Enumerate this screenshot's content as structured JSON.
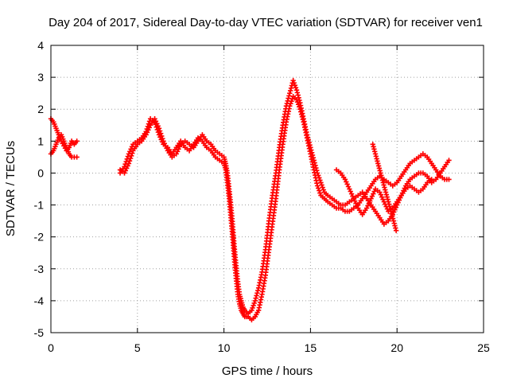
{
  "chart_data": {
    "type": "scatter",
    "title": "Day 204 of 2017, Sidereal Day-to-day VTEC variation (SDTVAR) for receiver ven1",
    "xlabel": "GPS time / hours",
    "ylabel": "SDTVAR / TECUs",
    "xlim": [
      0,
      25
    ],
    "ylim": [
      -5,
      4
    ],
    "xticks": [
      "0",
      "5",
      "10",
      "15",
      "20",
      "25"
    ],
    "yticks": [
      "-5",
      "-4",
      "-3",
      "-2",
      "-1",
      "0",
      "1",
      "2",
      "3",
      "4"
    ],
    "grid": true,
    "marker": "plus",
    "color": "#ff0000",
    "series": [
      {
        "name": "",
        "segments": [
          {
            "x": [
              0.0,
              0.15,
              0.3,
              0.45,
              0.6,
              0.75,
              0.9,
              1.05,
              1.2,
              1.35,
              1.5
            ],
            "y": [
              1.7,
              1.6,
              1.4,
              1.2,
              1.0,
              0.85,
              0.7,
              0.8,
              1.0,
              0.9,
              1.0
            ]
          },
          {
            "x": [
              0.0,
              0.15,
              0.3,
              0.45,
              0.6,
              0.75,
              0.9,
              1.05,
              1.2,
              1.35,
              1.5
            ],
            "y": [
              0.6,
              0.7,
              0.9,
              1.1,
              1.2,
              1.0,
              0.8,
              0.6,
              0.5,
              0.5,
              0.5
            ]
          },
          {
            "x": [
              4.0,
              4.25,
              4.5,
              4.75,
              5.0,
              5.25,
              5.5,
              5.75,
              6.0,
              6.25,
              6.5,
              6.75,
              7.0,
              7.25,
              7.5,
              7.75,
              8.0,
              8.25,
              8.5,
              8.75,
              9.0,
              9.25,
              9.5,
              9.75,
              10.0,
              10.1,
              10.2,
              10.3,
              10.4,
              10.5,
              10.6,
              10.7,
              10.8,
              10.9,
              11.0,
              11.1,
              11.2,
              11.4,
              11.6,
              11.8,
              12.0,
              12.2,
              12.4,
              12.6,
              12.8,
              13.0,
              13.2,
              13.4,
              13.6,
              13.8,
              14.0,
              14.2,
              14.4,
              14.6,
              14.8,
              15.0,
              15.2,
              15.4,
              15.6,
              15.8,
              16.0,
              16.25,
              16.5,
              16.75,
              17.0,
              17.25,
              17.5,
              17.75,
              18.0,
              18.25,
              18.5,
              18.75,
              19.0,
              19.25,
              19.5,
              19.75,
              20.0,
              20.25,
              20.5,
              20.75,
              21.0,
              21.25,
              21.5,
              21.75,
              22.0,
              22.25,
              22.5,
              22.75,
              23.0
            ],
            "y": [
              0.0,
              0.2,
              0.6,
              0.9,
              1.0,
              1.1,
              1.3,
              1.7,
              1.6,
              1.2,
              0.9,
              0.8,
              0.6,
              0.8,
              1.0,
              0.8,
              0.7,
              0.9,
              1.1,
              1.0,
              0.8,
              0.7,
              0.5,
              0.4,
              0.3,
              0.1,
              -0.3,
              -0.8,
              -1.4,
              -2.0,
              -2.7,
              -3.3,
              -3.8,
              -4.1,
              -4.3,
              -4.4,
              -4.5,
              -4.5,
              -4.6,
              -4.5,
              -4.3,
              -3.8,
              -3.2,
              -2.4,
              -1.6,
              -0.8,
              0.1,
              0.9,
              1.6,
              2.1,
              2.4,
              2.3,
              2.0,
              1.6,
              1.1,
              0.6,
              0.1,
              -0.4,
              -0.7,
              -0.8,
              -0.9,
              -1.0,
              -1.1,
              -1.1,
              -1.2,
              -1.2,
              -1.1,
              -1.0,
              -0.8,
              -0.6,
              -0.4,
              -0.2,
              -0.1,
              -0.2,
              -0.3,
              -0.4,
              -0.3,
              -0.1,
              0.1,
              0.3,
              0.4,
              0.5,
              0.6,
              0.5,
              0.3,
              0.1,
              -0.1,
              -0.2,
              -0.2
            ]
          },
          {
            "x": [
              4.0,
              4.25,
              4.5,
              4.75,
              5.0,
              5.25,
              5.5,
              5.75,
              6.0,
              6.25,
              6.5,
              6.75,
              7.0,
              7.25,
              7.5,
              7.75,
              8.0,
              8.25,
              8.5,
              8.75,
              9.0,
              9.25,
              9.5,
              9.75,
              10.0,
              10.1,
              10.2,
              10.3,
              10.4,
              10.5,
              10.6,
              10.7,
              10.8,
              10.9,
              11.0,
              11.1,
              11.2,
              11.4,
              11.6,
              11.8,
              12.0,
              12.2,
              12.4,
              12.6,
              12.8,
              13.0,
              13.2,
              13.4,
              13.6,
              13.8,
              14.0,
              14.2,
              14.4,
              14.6,
              14.8,
              15.0,
              15.2,
              15.4,
              15.6,
              15.8,
              16.0,
              16.25,
              16.5,
              16.75,
              17.0,
              17.25,
              17.5,
              17.75,
              18.0,
              18.25,
              18.5,
              18.75,
              19.0,
              19.25,
              19.5,
              19.75,
              20.0,
              20.25,
              20.5,
              20.75,
              21.0,
              21.25,
              21.5,
              21.75,
              22.0,
              22.25,
              22.5,
              22.75,
              23.0
            ],
            "y": [
              0.1,
              0.0,
              0.3,
              0.7,
              0.9,
              1.0,
              1.2,
              1.5,
              1.7,
              1.4,
              1.0,
              0.7,
              0.5,
              0.6,
              0.9,
              1.0,
              0.9,
              0.8,
              1.0,
              1.2,
              1.0,
              0.9,
              0.7,
              0.6,
              0.5,
              0.3,
              0.0,
              -0.5,
              -1.0,
              -1.6,
              -2.3,
              -2.9,
              -3.4,
              -3.8,
              -4.0,
              -4.2,
              -4.3,
              -4.4,
              -4.3,
              -4.0,
              -3.6,
              -3.1,
              -2.4,
              -1.5,
              -0.7,
              0.0,
              0.8,
              1.5,
              2.1,
              2.5,
              2.9,
              2.6,
              2.2,
              1.7,
              1.2,
              0.8,
              0.4,
              0.0,
              -0.3,
              -0.6,
              -0.7,
              -0.8,
              -0.9,
              -1.0,
              -1.0,
              -0.9,
              -0.8,
              -0.7,
              -0.6,
              -0.8,
              -1.0,
              -1.2,
              -1.4,
              -1.6,
              -1.5,
              -1.3,
              -1.0,
              -0.7,
              -0.4,
              -0.2,
              -0.1,
              0.0,
              0.0,
              -0.1,
              -0.3,
              -0.2,
              0.0,
              0.2,
              0.4
            ]
          },
          {
            "x": [
              16.5,
              16.75,
              17.0,
              17.25,
              17.5,
              17.75,
              18.0,
              18.25,
              18.5,
              18.75,
              19.0,
              19.25,
              19.5,
              19.75,
              20.0,
              20.25,
              20.5,
              20.75,
              21.0,
              21.25,
              21.5,
              21.75,
              22.0
            ],
            "y": [
              0.1,
              0.0,
              -0.2,
              -0.5,
              -0.8,
              -1.1,
              -1.3,
              -1.1,
              -0.8,
              -0.5,
              -0.6,
              -0.9,
              -1.2,
              -1.1,
              -0.9,
              -0.7,
              -0.5,
              -0.4,
              -0.5,
              -0.6,
              -0.5,
              -0.3,
              -0.2
            ]
          },
          {
            "x": [
              18.6,
              18.75,
              18.9,
              19.05,
              19.2,
              19.35,
              19.5,
              19.65,
              19.8,
              19.95
            ],
            "y": [
              0.9,
              0.6,
              0.3,
              0.0,
              -0.3,
              -0.6,
              -0.9,
              -1.2,
              -1.5,
              -1.8
            ]
          }
        ]
      }
    ]
  }
}
